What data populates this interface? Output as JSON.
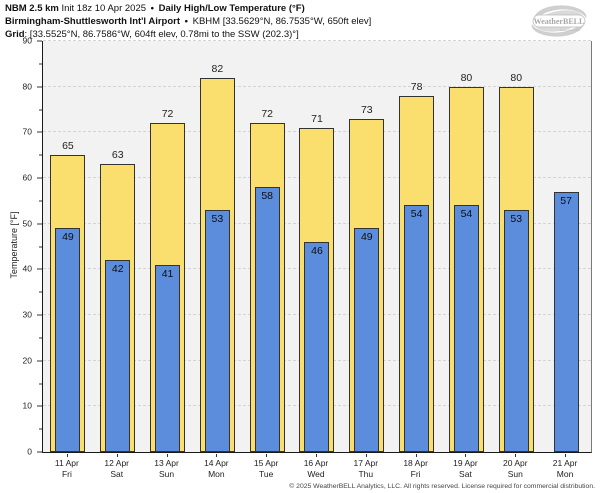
{
  "header": {
    "line1": {
      "model": "NBM 2.5 km",
      "init": "Init 18z 10 Apr 2025",
      "sep": "•",
      "product": "Daily High/Low Temperature (°F)"
    },
    "line2": {
      "station": "Birmingham-Shuttlesworth Int'l Airport",
      "sep": "•",
      "station_meta": "KBHM [33.5629°N, 86.7535°W, 650ft elev]"
    },
    "line3": {
      "label": "Grid",
      "value": ": [33.5525°N, 86.7586°W, 604ft elev, 0.78mi to the SSW (202.3)°]"
    }
  },
  "logo": {
    "text": "WeatherBELL",
    "subtext": "Analytics LLC"
  },
  "chart_data": {
    "type": "bar",
    "title": "Daily High/Low Temperature (°F)",
    "ylabel": "Temperature [°F]",
    "ylim": [
      0,
      90
    ],
    "ytick_interval": 10,
    "yminor_interval": 5,
    "grid": "horizontal dashed",
    "legend": "none",
    "categories": [
      {
        "date": "11 Apr",
        "day": "Fri"
      },
      {
        "date": "12 Apr",
        "day": "Sat"
      },
      {
        "date": "13 Apr",
        "day": "Sun"
      },
      {
        "date": "14 Apr",
        "day": "Mon"
      },
      {
        "date": "15 Apr",
        "day": "Tue"
      },
      {
        "date": "16 Apr",
        "day": "Wed"
      },
      {
        "date": "17 Apr",
        "day": "Thu"
      },
      {
        "date": "18 Apr",
        "day": "Fri"
      },
      {
        "date": "19 Apr",
        "day": "Sat"
      },
      {
        "date": "20 Apr",
        "day": "Sun"
      },
      {
        "date": "21 Apr",
        "day": "Mon"
      }
    ],
    "series": [
      {
        "name": "Daily High",
        "color": "#fadf6e",
        "values": [
          65,
          63,
          72,
          82,
          72,
          71,
          73,
          78,
          80,
          80,
          null
        ]
      },
      {
        "name": "Daily Low",
        "color": "#5b8ddc",
        "values": [
          49,
          42,
          41,
          53,
          58,
          46,
          49,
          54,
          54,
          53,
          57
        ]
      }
    ]
  },
  "colors": {
    "plot_background": "#f2f2f2",
    "gridline": "#d4d4d4",
    "bar_outline": "#333333",
    "axis": "#1a1a1a",
    "text": "#222222"
  },
  "footer": {
    "copyright": "© 2025 WeatherBELL Analytics, LLC. All rights reserved. License required for commercial distribution."
  }
}
